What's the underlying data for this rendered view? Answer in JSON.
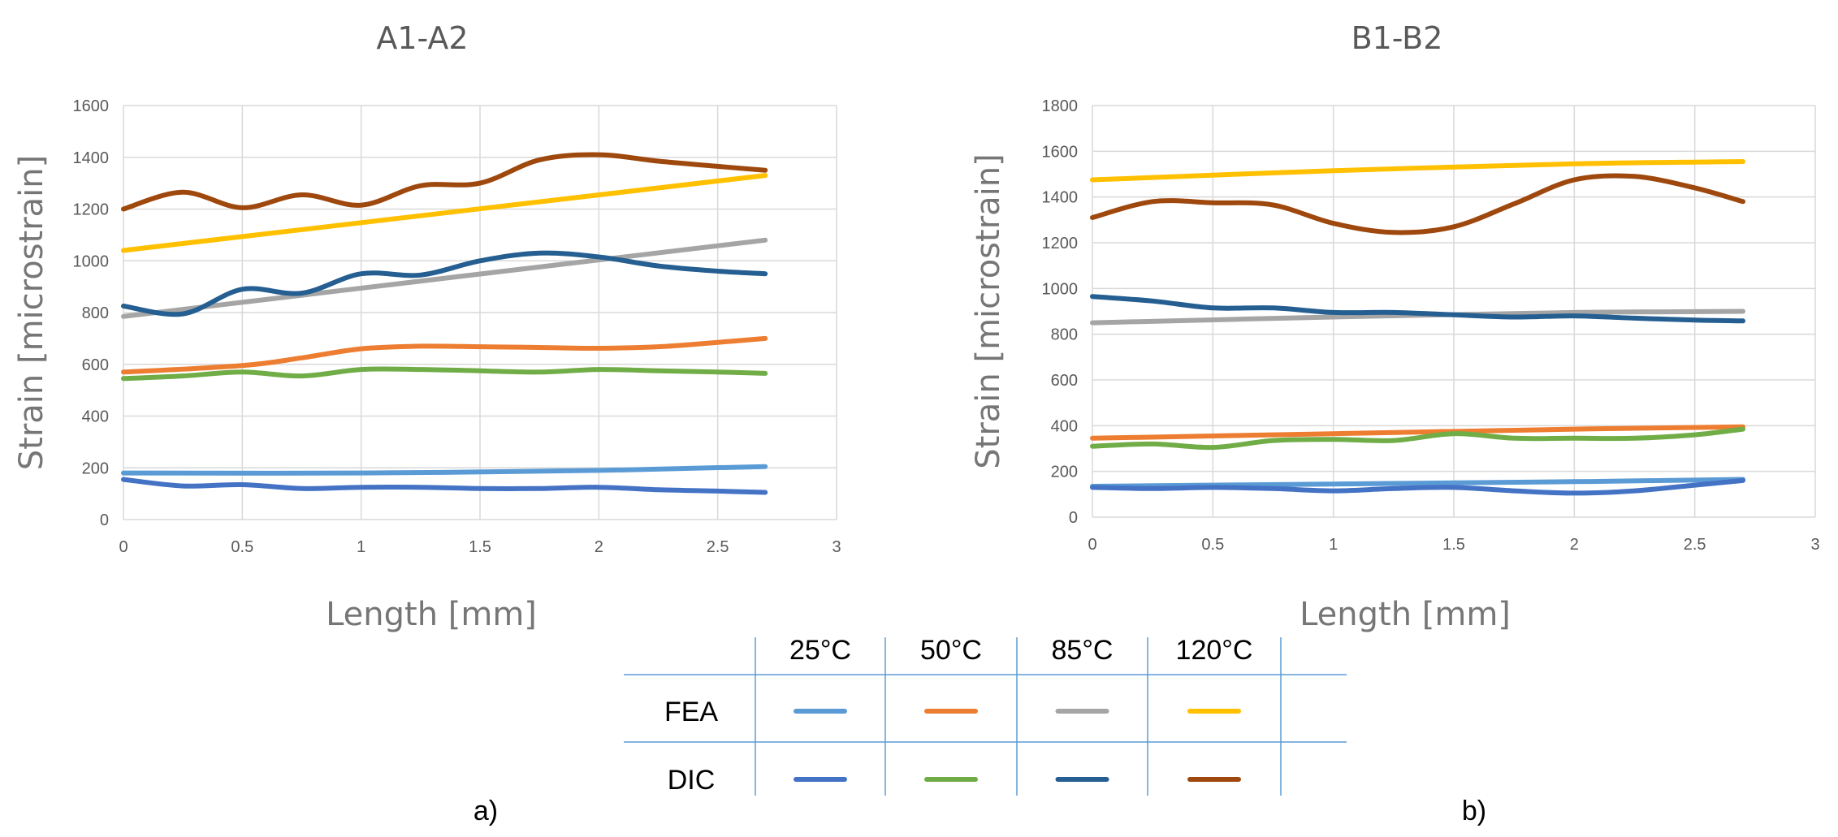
{
  "chart_data": [
    {
      "type": "line",
      "panel_tag": "a)",
      "title": "A1-A2",
      "xlabel": "Length [mm]",
      "ylabel": "Strain [microstrain]",
      "xlim": [
        0,
        3
      ],
      "ylim": [
        0,
        1600
      ],
      "xticks": [
        "0",
        "0.5",
        "1",
        "1.5",
        "2",
        "2.5",
        "3"
      ],
      "yticks": [
        "0",
        "200",
        "400",
        "600",
        "800",
        "1000",
        "1200",
        "1400",
        "1600"
      ],
      "grid": true,
      "series": [
        {
          "name": "FEA 25°C",
          "color": "#5B9BD5",
          "x": [
            0,
            1,
            2,
            2.7
          ],
          "y": [
            180,
            180,
            190,
            205
          ]
        },
        {
          "name": "DIC 25°C",
          "color": "#4472C4",
          "x": [
            0,
            0.25,
            0.5,
            0.75,
            1,
            1.25,
            1.5,
            1.75,
            2,
            2.25,
            2.5,
            2.7
          ],
          "y": [
            155,
            130,
            135,
            120,
            125,
            125,
            120,
            120,
            125,
            115,
            110,
            105
          ]
        },
        {
          "name": "FEA 50°C",
          "color": "#ED7D31",
          "x": [
            0,
            0.5,
            0.75,
            1,
            1.25,
            1.5,
            1.75,
            2,
            2.25,
            2.5,
            2.7
          ],
          "y": [
            570,
            595,
            625,
            660,
            670,
            668,
            665,
            662,
            668,
            685,
            700
          ]
        },
        {
          "name": "DIC 50°C",
          "color": "#70AD47",
          "x": [
            0,
            0.25,
            0.5,
            0.75,
            1,
            1.25,
            1.5,
            1.75,
            2,
            2.25,
            2.5,
            2.7
          ],
          "y": [
            545,
            555,
            570,
            555,
            580,
            580,
            575,
            570,
            580,
            575,
            570,
            565
          ]
        },
        {
          "name": "FEA 85°C",
          "color": "#A5A5A5",
          "x": [
            0,
            2.7
          ],
          "y": [
            785,
            1080
          ]
        },
        {
          "name": "DIC 85°C",
          "color": "#255E91",
          "x": [
            0,
            0.25,
            0.5,
            0.75,
            1,
            1.25,
            1.5,
            1.75,
            2,
            2.25,
            2.5,
            2.7
          ],
          "y": [
            825,
            795,
            890,
            875,
            950,
            945,
            1000,
            1030,
            1015,
            980,
            960,
            950
          ]
        },
        {
          "name": "FEA 120°C",
          "color": "#FFC000",
          "x": [
            0,
            2.7
          ],
          "y": [
            1040,
            1330
          ]
        },
        {
          "name": "DIC 120°C",
          "color": "#9E480E",
          "x": [
            0,
            0.25,
            0.5,
            0.75,
            1,
            1.25,
            1.5,
            1.75,
            2,
            2.25,
            2.5,
            2.7
          ],
          "y": [
            1200,
            1265,
            1205,
            1255,
            1215,
            1290,
            1300,
            1390,
            1410,
            1385,
            1365,
            1350
          ]
        }
      ]
    },
    {
      "type": "line",
      "panel_tag": "b)",
      "title": "B1-B2",
      "xlabel": "Length [mm]",
      "ylabel": "Strain [microstrain]",
      "xlim": [
        0,
        3
      ],
      "ylim": [
        0,
        1800
      ],
      "xticks": [
        "0",
        "0.5",
        "1",
        "1.5",
        "2",
        "2.5",
        "3"
      ],
      "yticks": [
        "0",
        "200",
        "400",
        "600",
        "800",
        "1000",
        "1200",
        "1400",
        "1600",
        "1800"
      ],
      "grid": true,
      "series": [
        {
          "name": "FEA 25°C",
          "color": "#5B9BD5",
          "x": [
            0,
            1,
            2,
            2.7
          ],
          "y": [
            135,
            145,
            155,
            165
          ]
        },
        {
          "name": "DIC 25°C",
          "color": "#4472C4",
          "x": [
            0,
            0.25,
            0.5,
            0.75,
            1,
            1.25,
            1.5,
            1.75,
            2,
            2.25,
            2.5,
            2.7
          ],
          "y": [
            130,
            125,
            130,
            125,
            115,
            125,
            130,
            115,
            105,
            115,
            140,
            160
          ]
        },
        {
          "name": "FEA 50°C",
          "color": "#ED7D31",
          "x": [
            0,
            1,
            2,
            2.7
          ],
          "y": [
            345,
            365,
            385,
            395
          ]
        },
        {
          "name": "DIC 50°C",
          "color": "#70AD47",
          "x": [
            0,
            0.25,
            0.5,
            0.75,
            1,
            1.25,
            1.5,
            1.75,
            2,
            2.25,
            2.5,
            2.7
          ],
          "y": [
            310,
            320,
            305,
            335,
            340,
            335,
            365,
            345,
            345,
            345,
            360,
            385
          ]
        },
        {
          "name": "FEA 85°C",
          "color": "#A5A5A5",
          "x": [
            0,
            1,
            2,
            2.7
          ],
          "y": [
            850,
            875,
            895,
            900
          ]
        },
        {
          "name": "DIC 85°C",
          "color": "#255E91",
          "x": [
            0,
            0.25,
            0.5,
            0.75,
            1,
            1.25,
            1.5,
            1.75,
            2,
            2.25,
            2.5,
            2.7
          ],
          "y": [
            965,
            945,
            915,
            915,
            895,
            895,
            885,
            875,
            880,
            870,
            862,
            858
          ]
        },
        {
          "name": "FEA 120°C",
          "color": "#FFC000",
          "x": [
            0,
            1,
            2,
            2.7
          ],
          "y": [
            1475,
            1515,
            1545,
            1555
          ]
        },
        {
          "name": "DIC 120°C",
          "color": "#9E480E",
          "x": [
            0,
            0.25,
            0.5,
            0.75,
            1,
            1.25,
            1.5,
            1.75,
            2,
            2.25,
            2.5,
            2.7
          ],
          "y": [
            1310,
            1380,
            1375,
            1365,
            1285,
            1245,
            1270,
            1370,
            1475,
            1490,
            1440,
            1380
          ]
        }
      ]
    }
  ],
  "legend": {
    "columns": [
      "25°C",
      "50°C",
      "85°C",
      "120°C"
    ],
    "rows": [
      {
        "label": "FEA",
        "colors": [
          "#5B9BD5",
          "#ED7D31",
          "#A5A5A5",
          "#FFC000"
        ]
      },
      {
        "label": "DIC",
        "colors": [
          "#4472C4",
          "#70AD47",
          "#255E91",
          "#9E480E"
        ]
      }
    ],
    "line_color": "#5B9BD5"
  }
}
